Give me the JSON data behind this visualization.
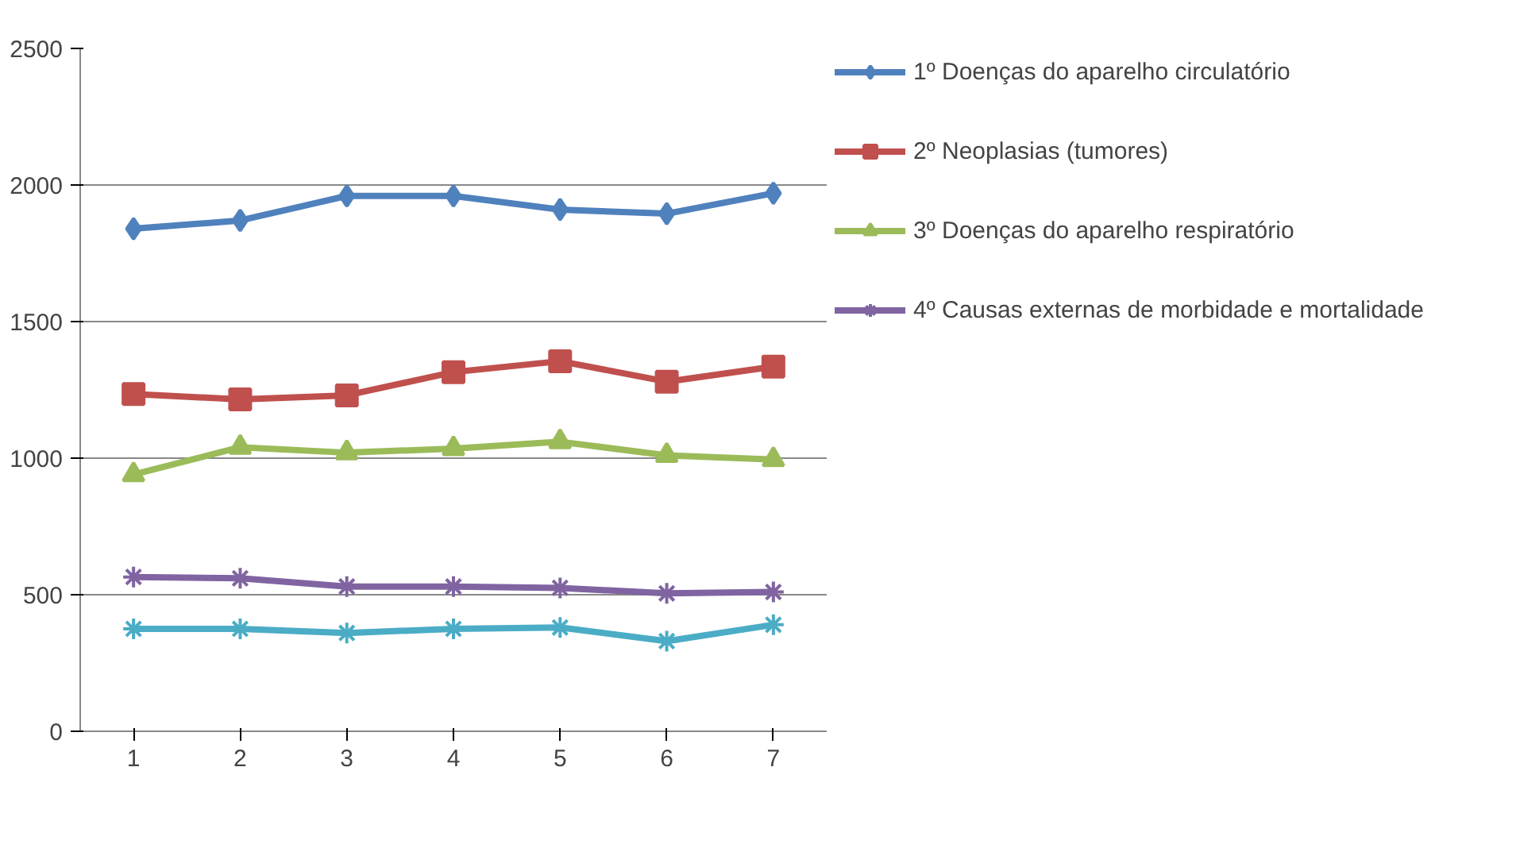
{
  "chart_data": {
    "type": "line",
    "categories": [
      "1",
      "2",
      "3",
      "4",
      "5",
      "6",
      "7"
    ],
    "ylim": [
      0,
      2500
    ],
    "yticks": [
      0,
      500,
      1000,
      1500,
      2000,
      2500
    ],
    "grid": "y",
    "legend": "right",
    "series": [
      {
        "name": "1º Doenças do aparelho circulatório",
        "color": "#4f81bd",
        "marker": "diamond",
        "values": [
          1840,
          1870,
          1960,
          1960,
          1910,
          1895,
          1970
        ]
      },
      {
        "name": "2º Neoplasias (tumores)",
        "color": "#c0504d",
        "marker": "square",
        "values": [
          1235,
          1215,
          1230,
          1315,
          1355,
          1280,
          1335
        ]
      },
      {
        "name": "3º Doenças do aparelho respiratório",
        "color": "#9bbb59",
        "marker": "triangle",
        "values": [
          940,
          1040,
          1020,
          1035,
          1060,
          1010,
          995
        ]
      },
      {
        "name": "4º Causas externas de morbidade e mortalidade",
        "color": "#8064a2",
        "marker": "cross",
        "values": [
          565,
          560,
          530,
          530,
          525,
          505,
          510
        ]
      },
      {
        "color": "#4bacc6",
        "marker": "cross",
        "values": [
          375,
          375,
          360,
          375,
          380,
          330,
          390
        ]
      }
    ]
  }
}
